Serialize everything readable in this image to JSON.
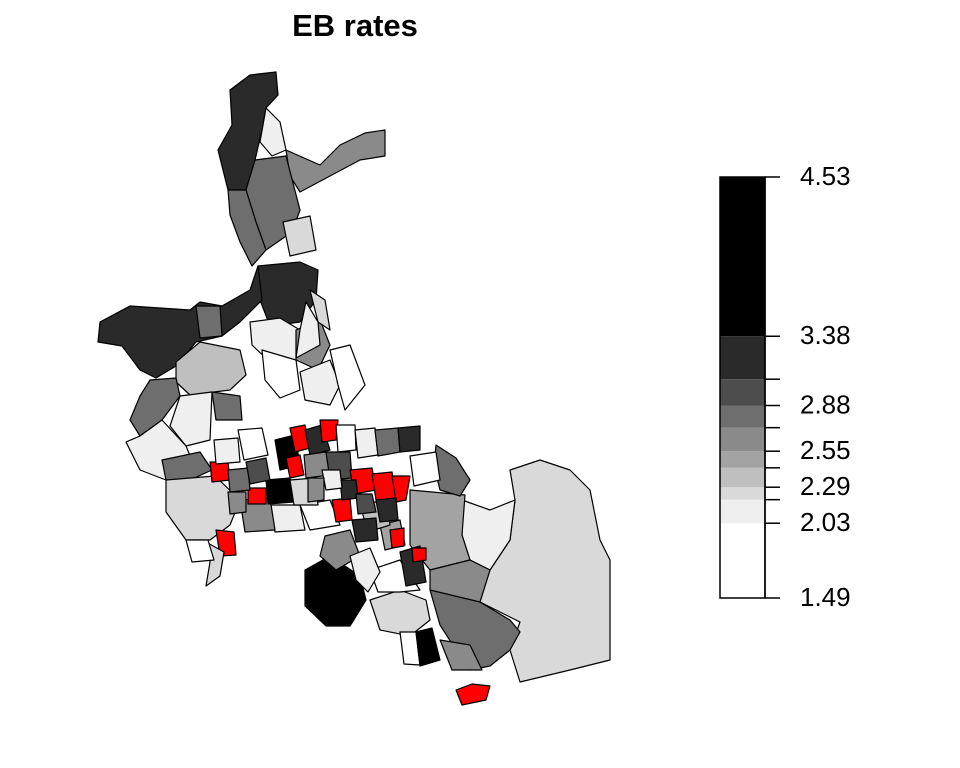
{
  "title": "EB rates",
  "legend": {
    "breaks": [
      1.49,
      {
        "value": 2.03,
        "label": "2.03"
      },
      {
        "value": 2.2,
        "label": null
      },
      2.29,
      {
        "value": 2.43,
        "label": null
      },
      2.55,
      {
        "value": 2.72,
        "label": null
      },
      2.88,
      {
        "value": 3.07,
        "label": null
      },
      3.38,
      4.53
    ],
    "colors": [
      "#ffffff",
      "#efefef",
      "#d9d9d9",
      "#bfbfbf",
      "#a3a3a3",
      "#8a8a8a",
      "#6e6e6e",
      "#4d4d4d",
      "#2a2a2a",
      "#000000",
      "#ff0000"
    ]
  }
}
